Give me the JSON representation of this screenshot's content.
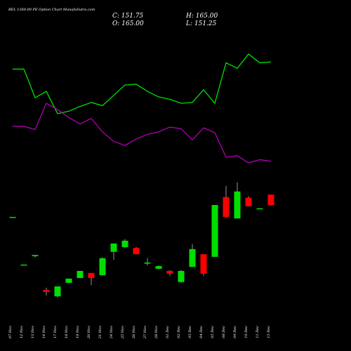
{
  "chart_data": {
    "type": "candlestick",
    "title": "BEL 1360.00 PE Option Chart MunafaSutra.com",
    "info": {
      "close": "C: 151.75",
      "high": "H: 165.00",
      "open": "O: 165.00",
      "low": "L: 151.25"
    },
    "categories": [
      "07 Nov",
      "12 Nov",
      "13 Nov",
      "14 Nov",
      "17 Nov",
      "18 Nov",
      "19 Nov",
      "20 Nov",
      "21 Nov",
      "24 Nov",
      "25 Nov",
      "26 Nov",
      "27 Nov",
      "28 Nov",
      "01 Dec",
      "02 Dec",
      "03 Dec",
      "04 Dec",
      "05 Dec",
      "08 Dec",
      "09 Dec",
      "10 Dec",
      "11 Dec",
      "15 Dec"
    ],
    "open": [
      137,
      77,
      87.5,
      45,
      37,
      54,
      60,
      66.4,
      63.7,
      93,
      99,
      98,
      78.5,
      71.7,
      69,
      55,
      74,
      90,
      86.7,
      162,
      135,
      161,
      147.8,
      165
    ],
    "high": [
      137,
      77,
      89,
      47.8,
      49.5,
      59.3,
      69,
      66.4,
      86,
      103.5,
      109,
      99,
      85,
      76,
      70,
      70,
      102.7,
      90,
      152,
      176,
      180.5,
      163,
      148,
      165
    ],
    "low": [
      137,
      77,
      86,
      38,
      35.4,
      54,
      60,
      51,
      63,
      83,
      98,
      90,
      76,
      71,
      62.8,
      54,
      74,
      62.8,
      86.7,
      136,
      135,
      150,
      147.5,
      151.25
    ],
    "close": [
      137,
      77,
      89,
      42.5,
      49.5,
      59.3,
      69,
      60,
      85,
      103.5,
      107,
      90,
      79.5,
      75,
      65.5,
      69,
      96.5,
      65.5,
      152,
      137,
      169,
      150.4,
      147.8,
      151.75
    ],
    "up_color": "#00e000",
    "down_color": "#ff0000",
    "ylim": [
      0,
      410
    ],
    "series": [
      {
        "color": "#00e000",
        "values": [
          323,
          323,
          287,
          295,
          267,
          270,
          276,
          281,
          277,
          290,
          303,
          304,
          295,
          288,
          285,
          280,
          281,
          297,
          280,
          331,
          324,
          342,
          331,
          332
        ]
      },
      {
        "color": "#b000b0",
        "values": [
          251,
          251,
          247,
          280,
          272,
          262,
          254,
          261,
          244,
          232,
          227,
          235,
          241,
          244,
          250,
          248,
          234,
          249,
          243,
          212,
          214,
          205,
          209,
          207
        ]
      }
    ]
  }
}
